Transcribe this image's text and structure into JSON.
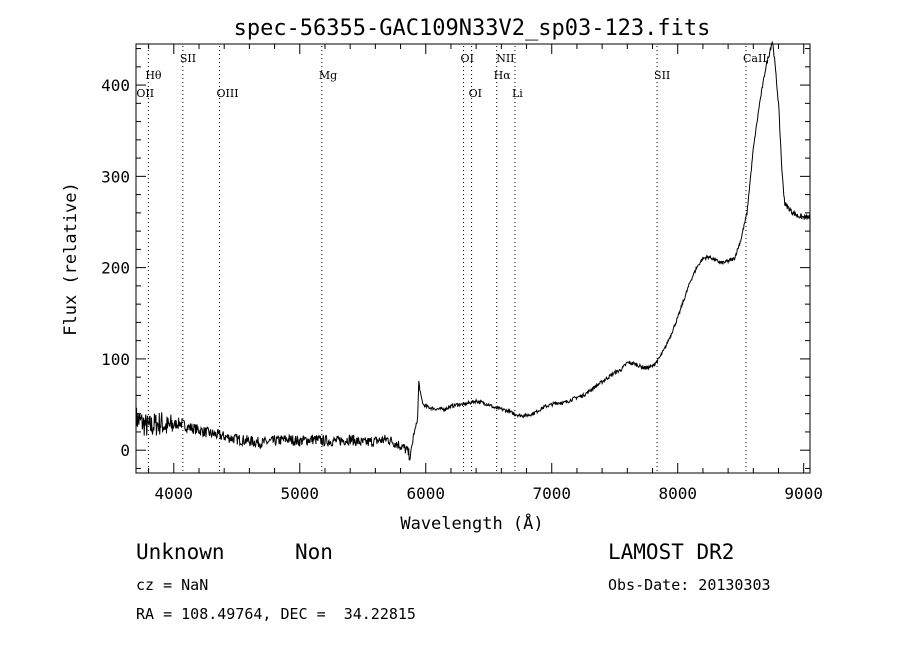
{
  "chart_data": {
    "type": "line",
    "title": "spec-56355-GAC109N33V2_sp03-123.fits",
    "xlabel": "Wavelength (Å)",
    "ylabel": "Flux (relative)",
    "xlim": [
      3700,
      9050
    ],
    "ylim": [
      -25,
      445
    ],
    "xticks": [
      4000,
      5000,
      6000,
      7000,
      8000,
      9000
    ],
    "yticks": [
      0,
      100,
      200,
      300,
      400
    ],
    "grid": false,
    "line_color": "#000000",
    "series": [
      {
        "x": [
          3700,
          3750,
          3800,
          3850,
          3900,
          3950,
          4000,
          4050,
          4100,
          4200,
          4300,
          4400,
          4500,
          4600,
          4700,
          4800,
          4900,
          5000,
          5100,
          5200,
          5300,
          5400,
          5500,
          5600,
          5700,
          5800,
          5850,
          5880,
          5900,
          5920,
          5935,
          5945,
          5960,
          5980,
          6000,
          6050,
          6100,
          6150,
          6200,
          6250,
          6300,
          6350,
          6400,
          6450,
          6500,
          6550,
          6600,
          6650,
          6700,
          6750,
          6800,
          6850,
          6900,
          6950,
          7000,
          7050,
          7100,
          7150,
          7200,
          7250,
          7300,
          7350,
          7400,
          7450,
          7500,
          7550,
          7600,
          7650,
          7700,
          7750,
          7800,
          7850,
          7900,
          7950,
          8000,
          8050,
          8100,
          8150,
          8200,
          8250,
          8300,
          8350,
          8400,
          8450,
          8500,
          8550,
          8600,
          8650,
          8700,
          8750,
          8760,
          8800,
          8830,
          8850,
          8900,
          8950,
          9000,
          9050
        ],
        "y": [
          35,
          30,
          25,
          28,
          30,
          25,
          28,
          30,
          26,
          22,
          18,
          15,
          12,
          10,
          8,
          10,
          12,
          10,
          12,
          10,
          10,
          12,
          8,
          10,
          12,
          5,
          0,
          -8,
          15,
          25,
          35,
          75,
          60,
          50,
          48,
          46,
          45,
          45,
          48,
          50,
          50,
          52,
          54,
          52,
          50,
          46,
          45,
          43,
          40,
          38,
          38,
          40,
          44,
          48,
          50,
          52,
          52,
          55,
          58,
          60,
          65,
          70,
          75,
          80,
          85,
          88,
          96,
          95,
          92,
          90,
          92,
          100,
          112,
          128,
          145,
          165,
          185,
          200,
          210,
          212,
          208,
          205,
          207,
          210,
          230,
          260,
          330,
          380,
          420,
          448,
          440,
          380,
          300,
          270,
          262,
          257,
          255,
          255
        ]
      }
    ],
    "line_labels": [
      {
        "label": "Hθ",
        "x": 3798,
        "row": 2
      },
      {
        "label": "OII",
        "x": 3727,
        "row": 3
      },
      {
        "label": "SII",
        "x": 4072,
        "row": 1
      },
      {
        "label": "OIII",
        "x": 4363,
        "row": 3
      },
      {
        "label": "Mg",
        "x": 5175,
        "row": 2
      },
      {
        "label": "OI",
        "x": 6300,
        "row": 1
      },
      {
        "label": "OI",
        "x": 6364,
        "row": 3
      },
      {
        "label": "NII",
        "x": 6583,
        "row": 1
      },
      {
        "label": "Hα",
        "x": 6563,
        "row": 2
      },
      {
        "label": "Li",
        "x": 6708,
        "row": 3
      },
      {
        "label": "SII",
        "x": 7836,
        "row": 2
      },
      {
        "label": "CaII",
        "x": 8542,
        "row": 1
      }
    ],
    "dotted_line_positions": [
      3798,
      4072,
      4363,
      5175,
      6300,
      6364,
      6563,
      6708,
      7836,
      8542
    ]
  },
  "info": {
    "class": "Unknown",
    "subclass": "Non",
    "survey": "LAMOST DR2",
    "cz": "cz = NaN",
    "obs_date": "Obs-Date: 20130303",
    "coords": "RA = 108.49764, DEC =  34.22815"
  }
}
